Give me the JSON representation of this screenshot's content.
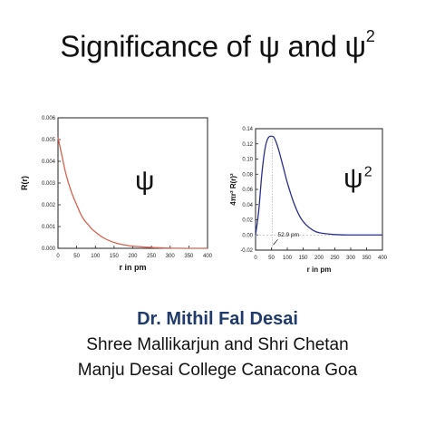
{
  "slide": {
    "title_main": "Significance of ψ and ψ",
    "title_sup": "2",
    "author": "Dr. Mithil Fal Desai",
    "affiliation_line1": "Shree Mallikarjun and Shri Chetan",
    "affiliation_line2": "Manju Desai College Canacona Goa"
  },
  "chart_data": [
    {
      "type": "line",
      "title": "",
      "symbol": "ψ",
      "xlabel": "r in pm",
      "ylabel": "R(r)",
      "xlim": [
        0,
        400
      ],
      "ylim": [
        0,
        0.006
      ],
      "xticks": [
        "0",
        "50",
        "100",
        "150",
        "200",
        "250",
        "300",
        "350",
        "400"
      ],
      "yticks": [
        "0.000",
        "0.001",
        "0.002",
        "0.003",
        "0.004",
        "0.005",
        "0.006"
      ],
      "grid": false,
      "line_color": "#d9604e",
      "series": [
        {
          "x": [
            0,
            10,
            20,
            30,
            40,
            50,
            60,
            70,
            80,
            90,
            100,
            120,
            140,
            160,
            180,
            200,
            250,
            300,
            350,
            400
          ],
          "values": [
            0.0051,
            0.0043,
            0.0035,
            0.0029,
            0.0024,
            0.002,
            0.0016,
            0.0013,
            0.0011,
            0.0009,
            0.00075,
            0.0005,
            0.00033,
            0.00022,
            0.00015,
            0.0001,
            4e-05,
            1e-05,
            0.0,
            0.0
          ]
        }
      ]
    },
    {
      "type": "line",
      "title": "",
      "symbol": "ψ",
      "symbol_sup": "2",
      "xlabel": "r in pm",
      "ylabel": "4πr² R(r)²",
      "xlim": [
        0,
        400
      ],
      "ylim": [
        -0.02,
        0.14
      ],
      "xticks": [
        "0",
        "50",
        "100",
        "150",
        "200",
        "250",
        "300",
        "350",
        "400"
      ],
      "yticks": [
        "-0.02",
        "0.00",
        "0.02",
        "0.04",
        "0.06",
        "0.08",
        "0.10",
        "0.12",
        "0.14"
      ],
      "grid": false,
      "line_color": "#2a2f8f",
      "annotation": {
        "text": "52.9 pm",
        "x": 52.9
      },
      "series": [
        {
          "x": [
            0,
            10,
            20,
            30,
            40,
            52.9,
            60,
            70,
            80,
            90,
            100,
            120,
            140,
            160,
            180,
            200,
            250,
            300,
            350,
            400
          ],
          "values": [
            0.0,
            0.032,
            0.081,
            0.114,
            0.128,
            0.13,
            0.127,
            0.116,
            0.101,
            0.085,
            0.069,
            0.043,
            0.024,
            0.013,
            0.0065,
            0.003,
            0.0005,
            0.0,
            0.0,
            0.0
          ]
        }
      ]
    }
  ]
}
